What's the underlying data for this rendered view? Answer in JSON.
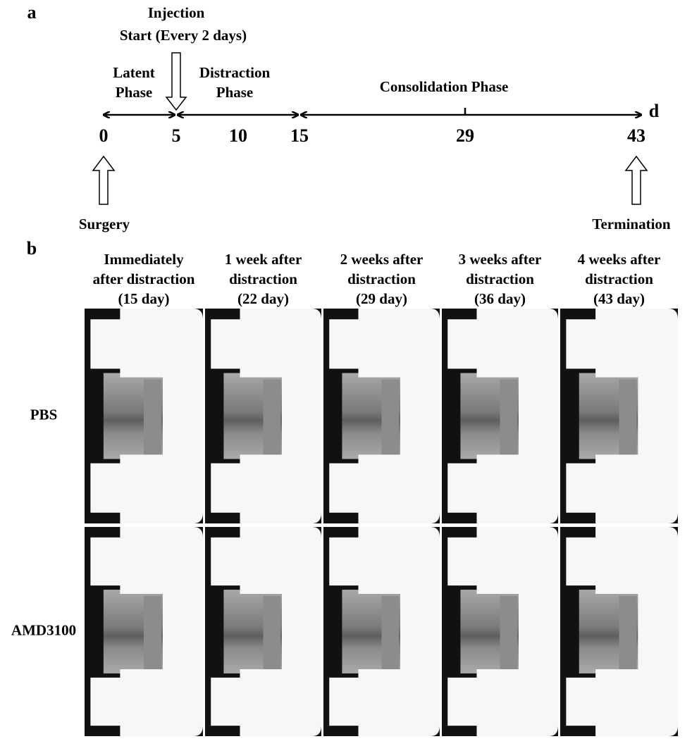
{
  "panel_a": {
    "label": "a",
    "injection": [
      "Injection",
      "Start (Every 2 days)"
    ],
    "phases": {
      "latent": [
        "Latent",
        "Phase"
      ],
      "distraction": [
        "Distraction",
        "Phase"
      ],
      "consolidation": "Consolidation Phase"
    },
    "timeline": {
      "ticks": [
        "0",
        "5",
        "10",
        "15",
        "29",
        "43"
      ],
      "unit": "d"
    },
    "events": {
      "start": "Surgery",
      "end": "Termination"
    }
  },
  "panel_b": {
    "label": "b",
    "columns": [
      [
        "Immediately",
        "after distraction",
        "(15 day)"
      ],
      [
        "1 week after",
        "distraction",
        "(22 day)"
      ],
      [
        "2 weeks after",
        "distraction",
        "(29 day)"
      ],
      [
        "3 weeks after",
        "distraction",
        "(36 day)"
      ],
      [
        "4 weeks after",
        "distraction",
        "(43 day)"
      ]
    ],
    "rows": [
      "PBS",
      "AMD3100"
    ]
  }
}
